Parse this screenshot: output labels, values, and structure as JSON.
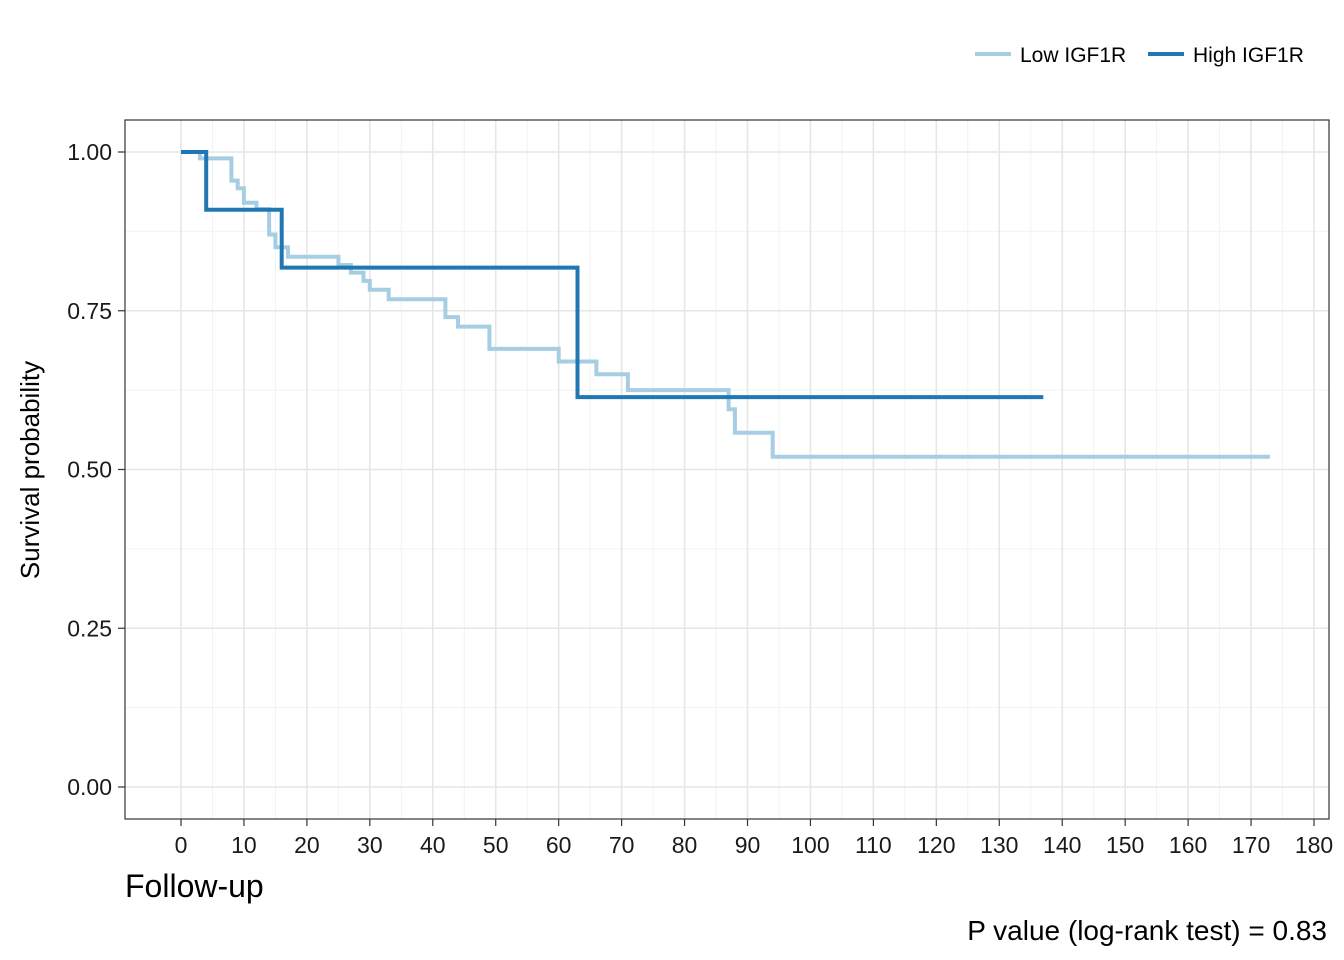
{
  "chart_data": {
    "type": "line",
    "subtype": "kaplan-meier-step",
    "title": "",
    "xlabel": "Follow-up",
    "ylabel": "Survival probability",
    "xlim": [
      0,
      180
    ],
    "ylim": [
      0,
      1
    ],
    "xticks": [
      0,
      10,
      20,
      30,
      40,
      50,
      60,
      70,
      80,
      90,
      100,
      110,
      120,
      130,
      140,
      150,
      160,
      170,
      180
    ],
    "yticks": [
      0,
      0.25,
      0.5,
      0.75,
      1.0
    ],
    "ytick_labels": [
      "0.00",
      "0.25",
      "0.50",
      "0.75",
      "1.00"
    ],
    "grid": true,
    "legend_position": "top-right",
    "annotation": "P value (log-rank test) = 0.83",
    "series": [
      {
        "name": "Low IGF1R",
        "color": "#a6cee3",
        "steps": [
          [
            0,
            1.0
          ],
          [
            3,
            0.99
          ],
          [
            8,
            0.955
          ],
          [
            9,
            0.943
          ],
          [
            10,
            0.92
          ],
          [
            12,
            0.91
          ],
          [
            14,
            0.87
          ],
          [
            15,
            0.85
          ],
          [
            17,
            0.835
          ],
          [
            25,
            0.822
          ],
          [
            27,
            0.81
          ],
          [
            29,
            0.797
          ],
          [
            30,
            0.783
          ],
          [
            33,
            0.768
          ],
          [
            42,
            0.74
          ],
          [
            44,
            0.725
          ],
          [
            49,
            0.69
          ],
          [
            60,
            0.67
          ],
          [
            66,
            0.65
          ],
          [
            71,
            0.625
          ],
          [
            87,
            0.595
          ],
          [
            88,
            0.558
          ],
          [
            94,
            0.52
          ],
          [
            173,
            0.52
          ]
        ]
      },
      {
        "name": "High IGF1R",
        "color": "#1f78b4",
        "steps": [
          [
            0,
            1.0
          ],
          [
            4,
            0.909
          ],
          [
            16,
            0.818
          ],
          [
            63,
            0.614
          ],
          [
            137,
            0.614
          ]
        ]
      }
    ]
  }
}
